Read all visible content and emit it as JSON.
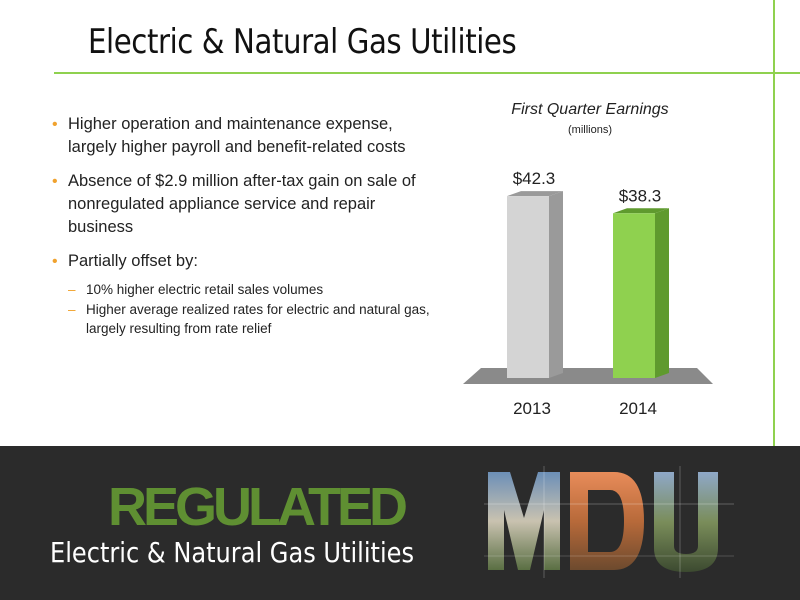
{
  "slide": {
    "title": "Electric & Natural Gas Utilities"
  },
  "bullets": [
    {
      "text": "Higher operation and maintenance expense, largely higher payroll and benefit-related costs"
    },
    {
      "text": "Absence of $2.9 million after-tax gain on sale of nonregulated appliance service and repair business"
    },
    {
      "text": "Partially offset by:"
    }
  ],
  "sub_bullets": [
    {
      "text": "10% higher electric retail sales volumes"
    },
    {
      "text": "Higher average realized rates for electric and natural gas, largely resulting from rate relief"
    }
  ],
  "bullet_glyph": "•",
  "dash_glyph": "–",
  "chart_data": {
    "type": "bar",
    "title": "First Quarter Earnings",
    "subtitle": "(millions)",
    "categories": [
      "2013",
      "2014"
    ],
    "values": [
      42.3,
      38.3
    ],
    "value_labels": [
      "$42.3",
      "$38.3"
    ],
    "colors": [
      "#d4d4d4",
      "#8fd14f"
    ],
    "side_colors": [
      "#9a9a9a",
      "#5f9a2e"
    ],
    "ylim": [
      0,
      50
    ],
    "grid": false,
    "legend": "none"
  },
  "footer": {
    "banner": "REGULATED",
    "subtitle": "Electric & Natural Gas Utilities",
    "logo_text": "MDU",
    "banner_color": "#5f8f32"
  },
  "colors": {
    "accent_green": "#8fd14f",
    "bullet_orange": "#f0a22e",
    "footer_bg": "#2b2b2b"
  }
}
